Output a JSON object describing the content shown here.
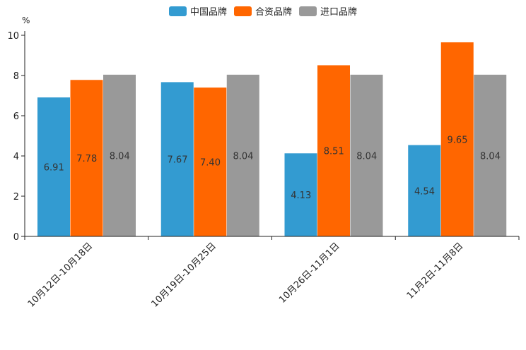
{
  "chart_data": {
    "type": "bar",
    "title": "",
    "unit": "%",
    "xlabel": "",
    "ylabel": "%",
    "ylim": [
      0,
      10
    ],
    "yticks": [
      0,
      2,
      4,
      6,
      8,
      10
    ],
    "grid": false,
    "legend_position": "top-center",
    "categories": [
      "10月12日-10月18日",
      "10月19日-10月25日",
      "10月26日-11月1日",
      "11月2日-11月8日"
    ],
    "series": [
      {
        "name": "中国品牌",
        "color": "#339bd1",
        "values": [
          6.91,
          7.67,
          4.13,
          4.54
        ],
        "labels": [
          "6.91",
          "7.67",
          "4.13",
          "4.54"
        ]
      },
      {
        "name": "合资品牌",
        "color": "#ff6600",
        "values": [
          7.78,
          7.4,
          8.51,
          9.65
        ],
        "labels": [
          "7.78",
          "7.40",
          "8.51",
          "9.65"
        ]
      },
      {
        "name": "进口品牌",
        "color": "#999999",
        "values": [
          8.04,
          8.04,
          8.04,
          8.04
        ],
        "labels": [
          "8.04",
          "8.04",
          "8.04",
          "8.04"
        ]
      }
    ]
  }
}
